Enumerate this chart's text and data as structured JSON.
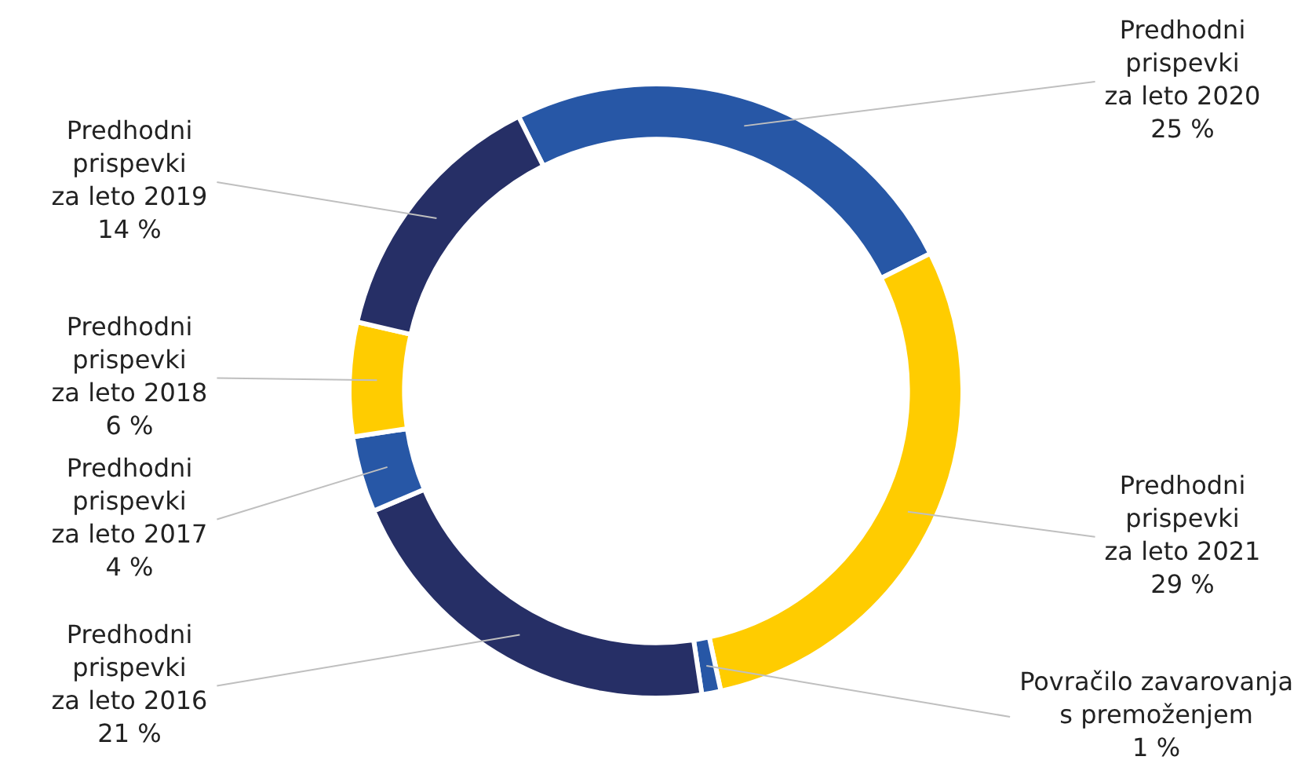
{
  "chart_data": {
    "type": "donut",
    "categories": [
      "Predhodni\nprispevki\nza leto 2020",
      "Predhodni\nprispevki\nza leto 2021",
      "Povračilo zavarovanja\ns premoženjem",
      "Predhodni\nprispevki\nza leto 2016",
      "Predhodni\nprispevki\nza leto 2017",
      "Predhodni\nprispevki\nza leto 2018",
      "Predhodni\nprispevki\nza leto 2019"
    ],
    "values": [
      25,
      29,
      1,
      21,
      4,
      6,
      14
    ],
    "value_labels": [
      "25 %",
      "29 %",
      "1 %",
      "21 %",
      "4 %",
      "6 %",
      "14 %"
    ],
    "colors": [
      "#2757a6",
      "#ffcc00",
      "#2757a6",
      "#262f66",
      "#2757a6",
      "#ffcc00",
      "#262f66"
    ],
    "legend": false
  }
}
